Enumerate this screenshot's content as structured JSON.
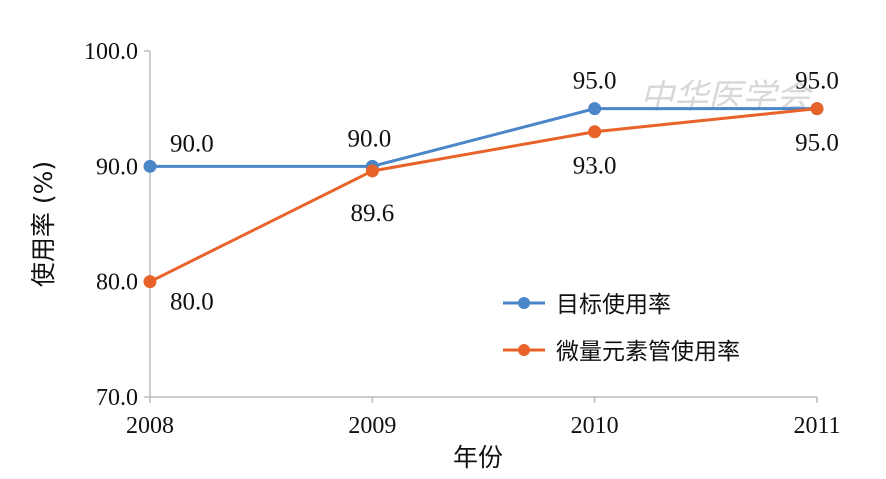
{
  "chart_data": {
    "type": "line",
    "title": "",
    "xlabel": "年份",
    "ylabel": "使用率 (%)",
    "categories": [
      "2008",
      "2009",
      "2010",
      "2011"
    ],
    "ylim": [
      70,
      100
    ],
    "yticks": [
      "70.0",
      "80.0",
      "90.0",
      "100.0"
    ],
    "grid": false,
    "legend_position": "bottom-right",
    "series": [
      {
        "name": "目标使用率",
        "color": "#4a86c8",
        "values": [
          90.0,
          90.0,
          95.0,
          95.0
        ],
        "labels": [
          "90.0",
          "90.0",
          "95.0",
          "95.0"
        ]
      },
      {
        "name": "微量元素管使用率",
        "color": "#e8632a",
        "values": [
          80.0,
          89.6,
          93.0,
          95.0
        ],
        "labels": [
          "80.0",
          "89.6",
          "93.0",
          "95.0"
        ]
      }
    ],
    "watermark": "中华医学会"
  }
}
